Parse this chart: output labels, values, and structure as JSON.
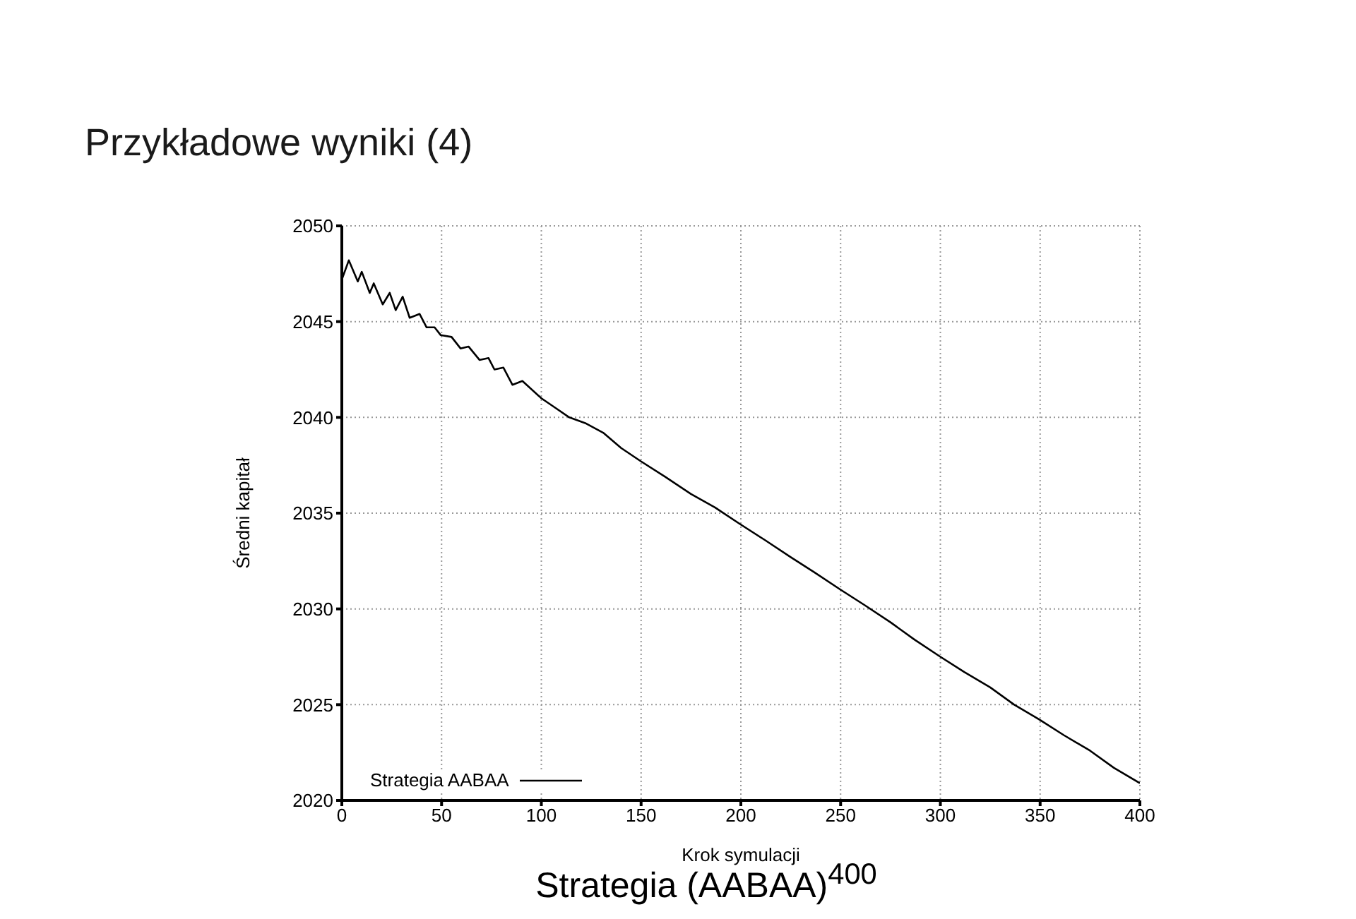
{
  "chart_data": {
    "type": "line",
    "title": "Przykładowe wyniki (4)",
    "xlabel": "Krok symulacji",
    "ylabel": "Średni kapitał",
    "annotations": [
      "Strategia (AABAA)$^{400}$"
    ],
    "series": [
      {
        "name": "Strategia AABAA",
        "color": "#000000",
        "x": [
          0,
          3.5,
          8,
          10,
          14,
          16,
          20.5,
          24,
          27,
          30.5,
          34,
          39,
          42.5,
          46.5,
          49.5,
          55,
          59.5,
          63.5,
          69,
          73.5,
          76.5,
          81,
          85.5,
          90.5,
          100,
          107,
          114,
          122,
          131,
          140,
          150,
          162,
          175,
          187,
          200,
          212,
          225,
          237,
          250,
          262,
          275,
          287,
          300,
          312,
          325,
          337,
          350,
          362,
          375,
          387,
          400
        ],
        "values": [
          2047.2,
          2048.2,
          2047.1,
          2047.6,
          2046.5,
          2047.0,
          2045.9,
          2046.5,
          2045.6,
          2046.3,
          2045.2,
          2045.4,
          2044.7,
          2044.7,
          2044.3,
          2044.2,
          2043.6,
          2043.7,
          2043.0,
          2043.1,
          2042.5,
          2042.6,
          2041.7,
          2041.9,
          2041.0,
          2040.5,
          2040.0,
          2039.7,
          2039.2,
          2038.4,
          2037.7,
          2036.9,
          2036.0,
          2035.3,
          2034.4,
          2033.6,
          2032.7,
          2031.9,
          2031.0,
          2030.2,
          2029.3,
          2028.4,
          2027.5,
          2026.7,
          2025.9,
          2025.0,
          2024.2,
          2023.4,
          2022.6,
          2021.7,
          2020.9
        ]
      }
    ],
    "xlim": [
      0,
      400
    ],
    "xticks": [
      0,
      50,
      100,
      150,
      200,
      250,
      300,
      350,
      400
    ],
    "ylim": [
      2020,
      2050
    ],
    "yticks": [
      2020,
      2025,
      2030,
      2035,
      2040,
      2045,
      2050
    ],
    "grid": true,
    "legend": "bottom left",
    "marker": "none",
    "line_style": "solid"
  }
}
